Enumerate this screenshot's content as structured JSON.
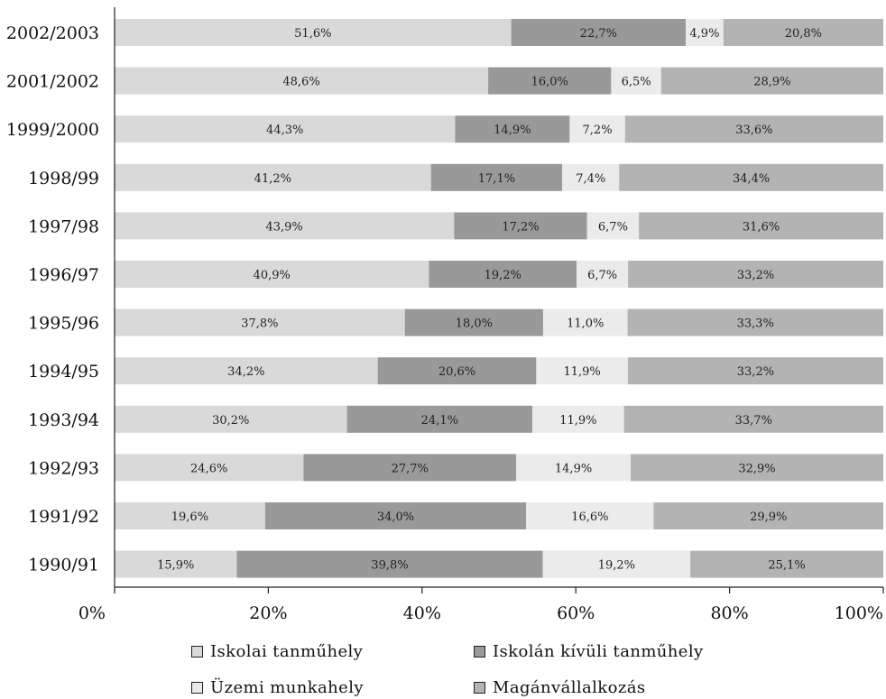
{
  "chart_data": {
    "type": "bar",
    "orientation": "horizontal",
    "stacked": true,
    "categories": [
      "2002/2003",
      "2001/2002",
      "1999/2000",
      "1998/99",
      "1997/98",
      "1996/97",
      "1995/96",
      "1994/95",
      "1993/94",
      "1992/93",
      "1991/92",
      "1990/91"
    ],
    "series": [
      {
        "name": "Iskolai tanműhely",
        "color": "#d9d9d9",
        "values": [
          51.6,
          48.6,
          44.3,
          41.2,
          43.9,
          40.9,
          37.8,
          34.2,
          30.2,
          24.6,
          19.6,
          15.9
        ],
        "labels": [
          "51,6%",
          "48,6%",
          "44,3%",
          "41,2%",
          "43,9%",
          "40,9%",
          "37,8%",
          "34,2%",
          "30,2%",
          "24,6%",
          "19,6%",
          "15,9%"
        ]
      },
      {
        "name": "Iskolán kívüli tanműhely",
        "color": "#999999",
        "values": [
          22.7,
          16.0,
          14.9,
          17.1,
          17.2,
          19.2,
          18.0,
          20.6,
          24.1,
          27.7,
          34.0,
          39.8
        ],
        "labels": [
          "22,7%",
          "16,0%",
          "14,9%",
          "17,1%",
          "17,2%",
          "19,2%",
          "18,0%",
          "20,6%",
          "24,1%",
          "27,7%",
          "34,0%",
          "39,8%"
        ]
      },
      {
        "name": "Üzemi munkahely",
        "color": "#ebebeb",
        "values": [
          4.9,
          6.5,
          7.2,
          7.4,
          6.7,
          6.7,
          11.0,
          11.9,
          11.9,
          14.9,
          16.6,
          19.2
        ],
        "labels": [
          "4,9%",
          "6,5%",
          "7,2%",
          "7,4%",
          "6,7%",
          "6,7%",
          "11,0%",
          "11,9%",
          "11,9%",
          "14,9%",
          "16,6%",
          "19,2%"
        ]
      },
      {
        "name": "Magánvállalkozás",
        "color": "#b3b3b3",
        "values": [
          20.8,
          28.9,
          33.6,
          34.4,
          31.6,
          33.2,
          33.3,
          33.2,
          33.7,
          32.9,
          29.9,
          25.1
        ],
        "labels": [
          "20,8%",
          "28,9%",
          "33,6%",
          "34,4%",
          "31,6%",
          "33,2%",
          "33,3%",
          "33,2%",
          "33,7%",
          "32,9%",
          "29,9%",
          "25,1%"
        ]
      }
    ],
    "xlim": [
      0,
      100
    ],
    "xticks": [
      0,
      20,
      40,
      60,
      80,
      100
    ],
    "xtick_labels": [
      "0%",
      "20%",
      "40%",
      "60%",
      "80%",
      "100%"
    ],
    "title": "",
    "xlabel": "",
    "ylabel": "",
    "grid": false,
    "legend_position": "bottom"
  },
  "legend": {
    "items": [
      {
        "label": "Iskolai tanműhely",
        "color": "#d9d9d9"
      },
      {
        "label": "Iskolán kívüli tanműhely",
        "color": "#999999"
      },
      {
        "label": "Üzemi munkahely",
        "color": "#ebebeb"
      },
      {
        "label": "Magánvállalkozás",
        "color": "#b3b3b3"
      }
    ]
  }
}
